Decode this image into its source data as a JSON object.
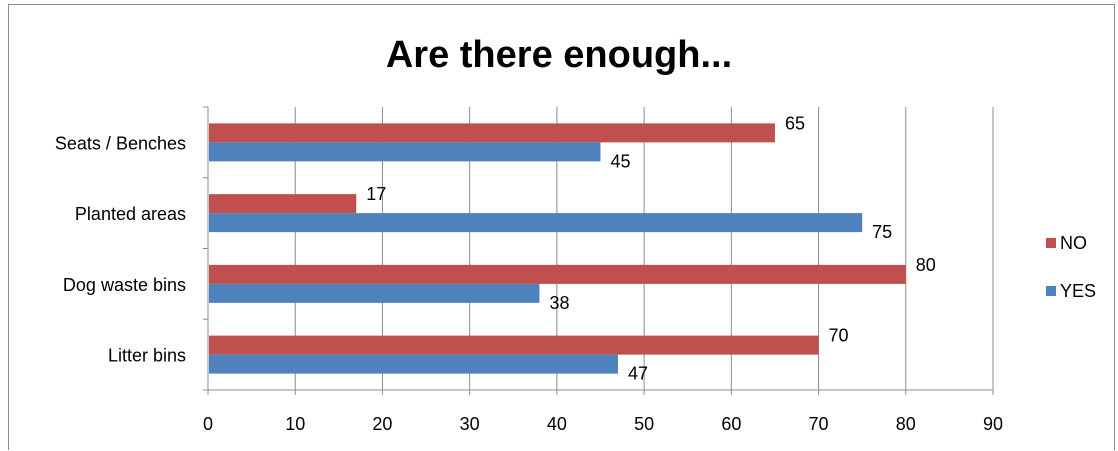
{
  "chart_data": {
    "type": "bar",
    "orientation": "horizontal",
    "title": "Are there enough...",
    "categories": [
      "Litter bins",
      "Dog waste bins",
      "Planted areas",
      "Seats / Benches"
    ],
    "series": [
      {
        "name": "YES",
        "color": "#4f81bd",
        "values": [
          47,
          38,
          75,
          45
        ]
      },
      {
        "name": "NO",
        "color": "#c0504d",
        "values": [
          70,
          80,
          17,
          65
        ]
      }
    ],
    "xlim": [
      0,
      90
    ],
    "xticks": [
      0,
      10,
      20,
      30,
      40,
      50,
      60,
      70,
      80,
      90
    ],
    "grid": true,
    "legend_position": "right",
    "data_labels": true,
    "legend_order": [
      "NO",
      "YES"
    ]
  }
}
